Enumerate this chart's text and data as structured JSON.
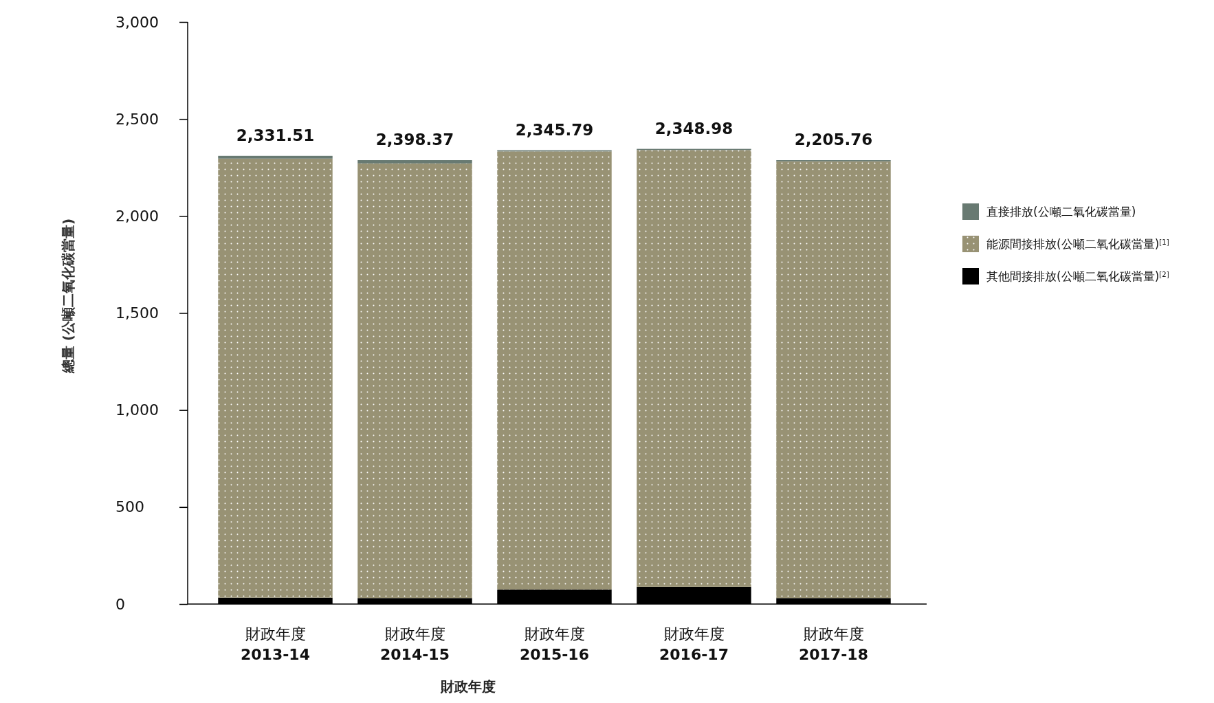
{
  "chart_data": {
    "type": "bar",
    "stacked": true,
    "xlabel": "財政年度",
    "ylabel": "總量 (公噸二氧化碳當量)",
    "categories": [
      "財政年度\n2013-14",
      "財政年度\n2014-15",
      "財政年度\n2015-16",
      "財政年度\n2016-17",
      "財政年度\n2017-18"
    ],
    "series": [
      {
        "name": "其他間接排放(公噸二氧化碳當量)$^{[2]}$",
        "color": "#000000",
        "values": [
          33,
          31,
          75,
          89,
          31
        ]
      },
      {
        "name": "能源間接排放(公噸二氧化碳當量)$^{[1]}$",
        "color": "#989274",
        "values": [
          2263,
          2240,
          2258,
          2251,
          2251
        ]
      },
      {
        "name": "直接排放(公噸二氧化碳當量)",
        "color": "#687a72",
        "values": [
          14,
          17,
          6,
          6,
          6
        ]
      }
    ],
    "annotations": [
      {
        "text": "2,331.51",
        "x": "財政年度\n2013-14",
        "y": 2310
      },
      {
        "text": "2,398.37",
        "x": "財政年度\n2014-15",
        "y": 2288
      },
      {
        "text": "2,345.79",
        "x": "財政年度\n2015-16",
        "y": 2339
      },
      {
        "text": "2,348.98",
        "x": "財政年度\n2016-17",
        "y": 2346
      },
      {
        "text": "2,205.76",
        "x": "財政年度\n2017-18",
        "y": 2288
      }
    ],
    "ylim": [
      0,
      3000
    ],
    "yticks": [
      {
        "value": 0,
        "label": "0"
      },
      {
        "value": 500,
        "label": "500"
      },
      {
        "value": 1000,
        "label": "1,000"
      },
      {
        "value": 1500,
        "label": "1,500"
      },
      {
        "value": 2000,
        "label": "2,000"
      },
      {
        "value": 2500,
        "label": "2,500"
      },
      {
        "value": 3000,
        "label": "3,000"
      }
    ],
    "grid": false,
    "legend": "right"
  }
}
